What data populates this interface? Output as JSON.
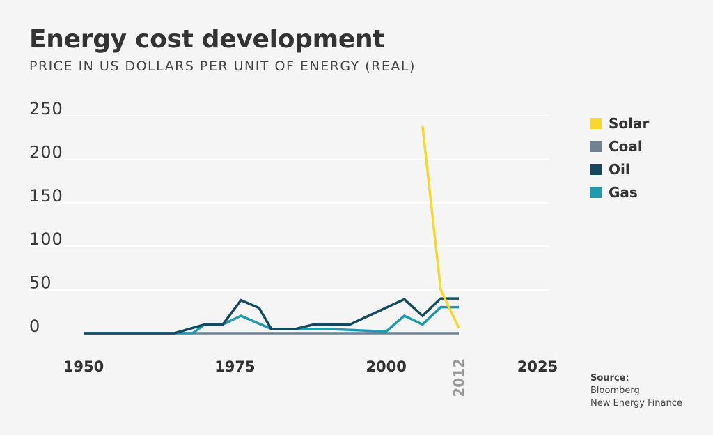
{
  "title": "Energy cost development",
  "subtitle": "PRICE IN US DOLLARS PER UNIT OF ENERGY (REAL)",
  "source": {
    "label": "Source:",
    "line1": "Bloomberg",
    "line2": "New Energy Finance"
  },
  "colors": {
    "Solar": "#f7d82b",
    "Coal": "#6e8295",
    "Oil": "#124a61",
    "Gas": "#1f9bad"
  },
  "chart_data": {
    "type": "line",
    "title": "Energy cost development",
    "subtitle": "PRICE IN US DOLLARS PER UNIT OF ENERGY (REAL)",
    "xlabel": "",
    "ylabel": "",
    "xlim": [
      1950,
      2025
    ],
    "ylim": [
      0,
      250
    ],
    "yticks": [
      0,
      50,
      100,
      150,
      200,
      250
    ],
    "xticks": [
      {
        "value": 1950,
        "label": "1950",
        "style": "bold"
      },
      {
        "value": 1975,
        "label": "1975",
        "style": "bold"
      },
      {
        "value": 2000,
        "label": "2000",
        "style": "bold"
      },
      {
        "value": 2012,
        "label": "2012",
        "style": "grey-rotated"
      },
      {
        "value": 2025,
        "label": "2025",
        "style": "bold"
      }
    ],
    "grid": true,
    "legend": "right",
    "series": [
      {
        "name": "Solar",
        "points": [
          [
            2006,
            238
          ],
          [
            2009,
            50
          ],
          [
            2012,
            6
          ]
        ]
      },
      {
        "name": "Coal",
        "points": [
          [
            1950,
            0
          ],
          [
            2012,
            0
          ]
        ]
      },
      {
        "name": "Oil",
        "points": [
          [
            1950,
            0
          ],
          [
            1965,
            0
          ],
          [
            1970,
            10
          ],
          [
            1973,
            10
          ],
          [
            1976,
            38
          ],
          [
            1979,
            29
          ],
          [
            1981,
            5
          ],
          [
            1985,
            5
          ],
          [
            1988,
            10
          ],
          [
            1994,
            10
          ],
          [
            2003,
            39
          ],
          [
            2006,
            20
          ],
          [
            2009,
            40
          ],
          [
            2012,
            40
          ]
        ]
      },
      {
        "name": "Gas",
        "points": [
          [
            1950,
            0
          ],
          [
            1968,
            0
          ],
          [
            1970,
            10
          ],
          [
            1973,
            10
          ],
          [
            1976,
            20
          ],
          [
            1981,
            5
          ],
          [
            1990,
            5
          ],
          [
            2000,
            2
          ],
          [
            2003,
            20
          ],
          [
            2006,
            10
          ],
          [
            2009,
            30
          ],
          [
            2012,
            30
          ]
        ]
      }
    ]
  }
}
